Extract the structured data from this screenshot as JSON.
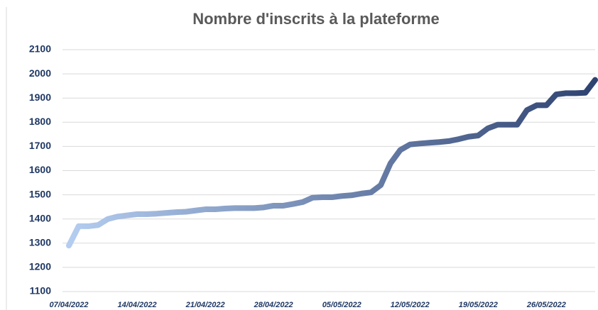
{
  "chart_data": {
    "type": "line",
    "title": "Nombre d'inscrits à la plateforme",
    "x": [
      "07/04/2022",
      "08/04/2022",
      "09/04/2022",
      "10/04/2022",
      "11/04/2022",
      "12/04/2022",
      "13/04/2022",
      "14/04/2022",
      "15/04/2022",
      "16/04/2022",
      "17/04/2022",
      "18/04/2022",
      "19/04/2022",
      "20/04/2022",
      "21/04/2022",
      "22/04/2022",
      "23/04/2022",
      "24/04/2022",
      "25/04/2022",
      "26/04/2022",
      "27/04/2022",
      "28/04/2022",
      "29/04/2022",
      "30/04/2022",
      "01/05/2022",
      "02/05/2022",
      "03/05/2022",
      "04/05/2022",
      "05/05/2022",
      "06/05/2022",
      "07/05/2022",
      "08/05/2022",
      "09/05/2022",
      "10/05/2022",
      "11/05/2022",
      "12/05/2022",
      "13/05/2022",
      "14/05/2022",
      "15/05/2022",
      "16/05/2022",
      "17/05/2022",
      "18/05/2022",
      "19/05/2022",
      "20/05/2022",
      "21/05/2022",
      "22/05/2022",
      "23/05/2022",
      "24/05/2022",
      "25/05/2022",
      "26/05/2022",
      "27/05/2022",
      "28/05/2022",
      "29/05/2022",
      "30/05/2022",
      "31/05/2022"
    ],
    "series": [
      {
        "colors": [
          "#b4cdf0",
          "#2e4270"
        ],
        "values": [
          1290,
          1370,
          1370,
          1375,
          1400,
          1410,
          1415,
          1420,
          1420,
          1422,
          1425,
          1428,
          1430,
          1435,
          1440,
          1440,
          1443,
          1445,
          1445,
          1445,
          1448,
          1455,
          1455,
          1462,
          1470,
          1488,
          1490,
          1490,
          1495,
          1498,
          1505,
          1510,
          1540,
          1630,
          1685,
          1708,
          1712,
          1715,
          1718,
          1722,
          1730,
          1740,
          1745,
          1775,
          1790,
          1790,
          1790,
          1850,
          1870,
          1870,
          1915,
          1920,
          1920,
          1922,
          1975
        ]
      }
    ],
    "xticks": [
      "07/04/2022",
      "14/04/2022",
      "21/04/2022",
      "28/04/2022",
      "05/05/2022",
      "12/05/2022",
      "19/05/2022",
      "26/05/2022"
    ],
    "ylim": [
      1100,
      2100
    ],
    "yticks": [
      1100,
      1200,
      1300,
      1400,
      1500,
      1600,
      1700,
      1800,
      1900,
      2000,
      2100
    ],
    "grid": true
  }
}
